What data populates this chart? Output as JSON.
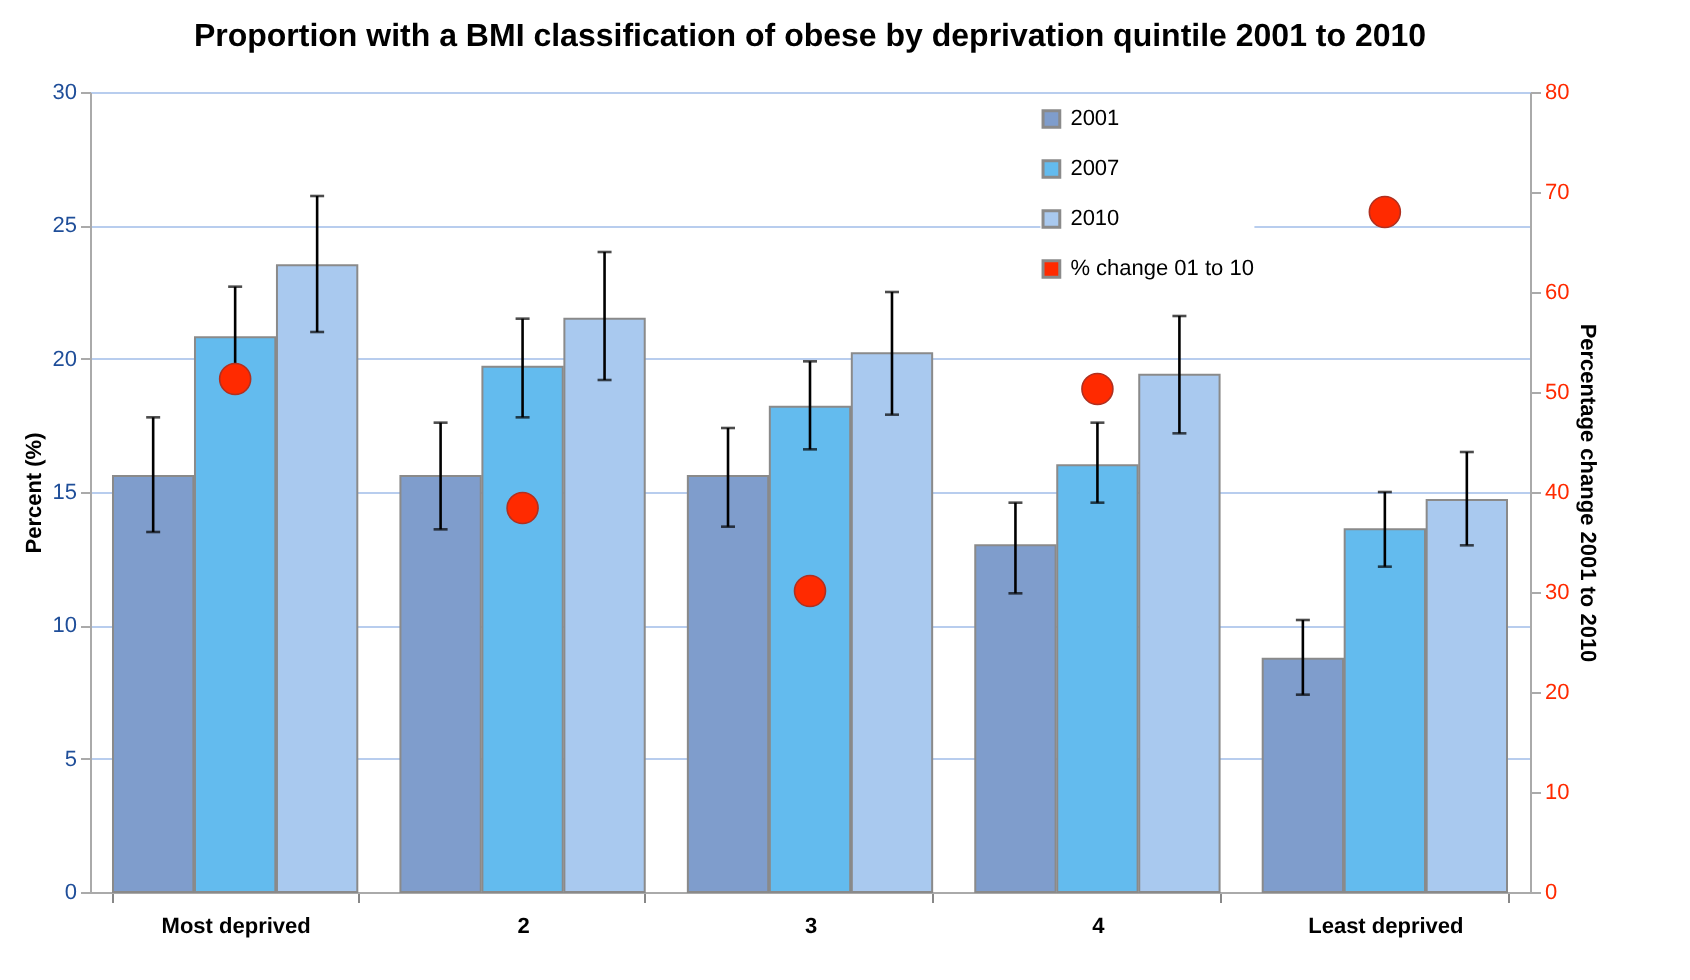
{
  "chart_data": {
    "type": "bar",
    "title": "Proportion with a BMI classification of obese by deprivation quintile 2001 to 2010",
    "categories": [
      "Most deprived",
      "2",
      "3",
      "4",
      "Least deprived"
    ],
    "series": [
      {
        "name": "2001",
        "color": "#7f9dcc",
        "values": [
          15.6,
          15.6,
          15.6,
          13.0,
          8.75
        ],
        "errors": [
          [
            13.5,
            17.8
          ],
          [
            13.6,
            17.6
          ],
          [
            13.7,
            17.4
          ],
          [
            11.2,
            14.6
          ],
          [
            7.4,
            10.2
          ]
        ]
      },
      {
        "name": "2007",
        "color": "#63bbee",
        "values": [
          20.8,
          19.7,
          18.2,
          16.0,
          13.6
        ],
        "errors": [
          [
            18.9,
            22.7
          ],
          [
            17.8,
            21.5
          ],
          [
            16.6,
            19.9
          ],
          [
            14.6,
            17.6
          ],
          [
            12.2,
            15.0
          ]
        ]
      },
      {
        "name": "2010",
        "color": "#a9c9ef",
        "values": [
          23.5,
          21.5,
          20.2,
          19.4,
          14.7
        ],
        "errors": [
          [
            21.0,
            26.1
          ],
          [
            19.2,
            24.0
          ],
          [
            17.9,
            22.5
          ],
          [
            17.2,
            21.6
          ],
          [
            13.0,
            16.5
          ]
        ]
      },
      {
        "name": "% change 01 to 10",
        "type": "scatter",
        "axis": "y2",
        "color": "#ff2a00",
        "values": [
          51.3,
          38.4,
          30.1,
          50.3,
          68.0
        ]
      }
    ],
    "ylabel": "Percent (%)",
    "y2label": "Percentage  change 2001 to 2010",
    "ylim": [
      0,
      30
    ],
    "yticks": [
      0,
      5,
      10,
      15,
      20,
      25,
      30
    ],
    "y2lim": [
      0,
      80
    ],
    "y2ticks": [
      0,
      10,
      20,
      30,
      40,
      50,
      60,
      70,
      80
    ],
    "grid": "y",
    "legend": "top",
    "marker": "circle"
  }
}
